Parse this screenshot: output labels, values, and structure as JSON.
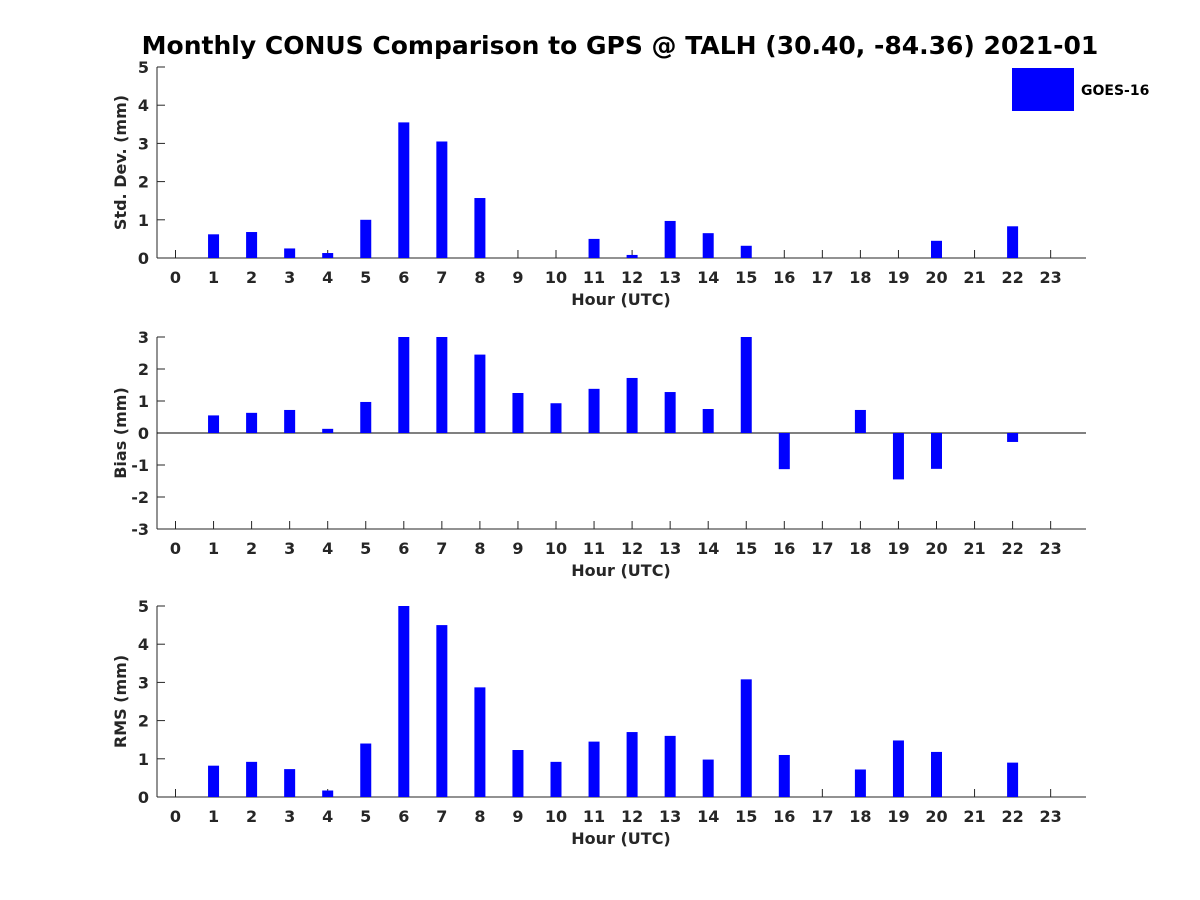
{
  "title": "Monthly CONUS Comparison to GPS @ TALH (30.40, -84.36) 2021-01",
  "legend": {
    "label": "GOES-16",
    "placement": "top-right",
    "color": "#0000ff"
  },
  "colors": {
    "bar": "#0000ff",
    "axis": "#262626",
    "text": "#262626"
  },
  "chart_data": [
    {
      "type": "bar",
      "title": "Monthly CONUS Comparison to GPS @ TALH (30.40, -84.36) 2021-01",
      "xlabel": "Hour (UTC)",
      "ylabel": "Std. Dev. (mm)",
      "ylim": [
        0,
        5
      ],
      "yticks": [
        0,
        1,
        2,
        3,
        4,
        5
      ],
      "grid": false,
      "categories": [
        "0",
        "1",
        "2",
        "3",
        "4",
        "5",
        "6",
        "7",
        "8",
        "9",
        "10",
        "11",
        "12",
        "13",
        "14",
        "15",
        "16",
        "17",
        "18",
        "19",
        "20",
        "21",
        "22",
        "23"
      ],
      "series": [
        {
          "name": "GOES-16",
          "values": [
            null,
            0.62,
            0.68,
            0.25,
            0.13,
            1.0,
            3.55,
            3.05,
            1.57,
            null,
            null,
            0.5,
            0.08,
            0.97,
            0.65,
            0.32,
            null,
            null,
            null,
            null,
            0.45,
            null,
            0.83,
            null
          ]
        }
      ]
    },
    {
      "type": "bar",
      "xlabel": "Hour (UTC)",
      "ylabel": "Bias (mm)",
      "ylim": [
        -3,
        3
      ],
      "yticks": [
        -3,
        -2,
        -1,
        0,
        1,
        2,
        3
      ],
      "grid": false,
      "zero_line": true,
      "categories": [
        "0",
        "1",
        "2",
        "3",
        "4",
        "5",
        "6",
        "7",
        "8",
        "9",
        "10",
        "11",
        "12",
        "13",
        "14",
        "15",
        "16",
        "17",
        "18",
        "19",
        "20",
        "21",
        "22",
        "23"
      ],
      "series": [
        {
          "name": "GOES-16",
          "values": [
            null,
            0.55,
            0.63,
            0.72,
            0.13,
            0.97,
            3.0,
            3.0,
            2.45,
            1.25,
            0.93,
            1.38,
            1.72,
            1.28,
            0.75,
            3.0,
            -1.13,
            null,
            0.72,
            -1.45,
            -1.12,
            null,
            -0.28,
            null
          ]
        }
      ]
    },
    {
      "type": "bar",
      "xlabel": "Hour (UTC)",
      "ylabel": "RMS (mm)",
      "ylim": [
        0,
        5
      ],
      "yticks": [
        0,
        1,
        2,
        3,
        4,
        5
      ],
      "grid": false,
      "categories": [
        "0",
        "1",
        "2",
        "3",
        "4",
        "5",
        "6",
        "7",
        "8",
        "9",
        "10",
        "11",
        "12",
        "13",
        "14",
        "15",
        "16",
        "17",
        "18",
        "19",
        "20",
        "21",
        "22",
        "23"
      ],
      "series": [
        {
          "name": "GOES-16",
          "values": [
            null,
            0.82,
            0.92,
            0.73,
            0.17,
            1.4,
            5.0,
            4.5,
            2.87,
            1.23,
            0.92,
            1.45,
            1.7,
            1.6,
            0.98,
            3.08,
            1.1,
            null,
            0.72,
            1.48,
            1.18,
            null,
            0.9,
            null
          ]
        }
      ]
    }
  ]
}
